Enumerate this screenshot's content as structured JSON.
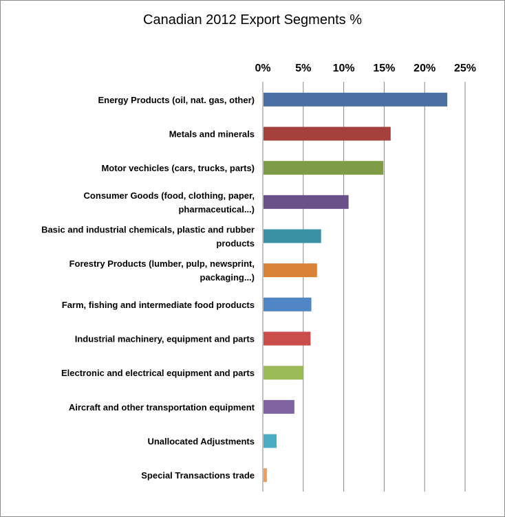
{
  "chart_data": {
    "type": "bar",
    "orientation": "horizontal",
    "title": "Canadian 2012 Export Segments %",
    "xlabel": "",
    "ylabel": "",
    "xlim": [
      0,
      25
    ],
    "x_axis_position": "top",
    "grid": true,
    "legend": "none",
    "ticks": [
      "0%",
      "5%",
      "10%",
      "15%",
      "20%",
      "25%"
    ],
    "tick_values": [
      0,
      5,
      10,
      15,
      20,
      25
    ],
    "categories": [
      {
        "label": "Energy Products (oil, nat. gas, other)",
        "lines": [
          "Energy Products (oil, nat. gas, other)"
        ],
        "value": 22.8,
        "color": "#4a6fa2"
      },
      {
        "label": "Metals and minerals",
        "lines": [
          "Metals and minerals"
        ],
        "value": 15.8,
        "color": "#a6403d"
      },
      {
        "label": "Motor vechicles (cars, trucks, parts)",
        "lines": [
          "Motor vechicles (cars, trucks, parts)"
        ],
        "value": 14.9,
        "color": "#7e9c46"
      },
      {
        "label": "Consumer Goods (food, clothing, paper, pharmaceutical...)",
        "lines": [
          "Consumer Goods (food, clothing, paper,",
          "pharmaceutical...)"
        ],
        "value": 10.6,
        "color": "#6a5189"
      },
      {
        "label": "Basic and industrial chemicals, plastic and rubber products",
        "lines": [
          "Basic and industrial chemicals, plastic and rubber",
          "products"
        ],
        "value": 7.2,
        "color": "#3a90a4"
      },
      {
        "label": "Forestry Products (lumber, pulp, newsprint, packaging...)",
        "lines": [
          "Forestry Products (lumber, pulp, newsprint,",
          "packaging...)"
        ],
        "value": 6.7,
        "color": "#d88238"
      },
      {
        "label": "Farm, fishing and intermediate food products",
        "lines": [
          "Farm, fishing and intermediate food products"
        ],
        "value": 6.0,
        "color": "#5086c6"
      },
      {
        "label": "Industrial machinery, equipment and parts",
        "lines": [
          "Industrial machinery, equipment and parts"
        ],
        "value": 5.9,
        "color": "#ca4d4b"
      },
      {
        "label": "Electronic and electrical equipment and parts",
        "lines": [
          "Electronic and electrical equipment and parts"
        ],
        "value": 5.0,
        "color": "#9bbb59"
      },
      {
        "label": "Aircraft and other transportation equipment",
        "lines": [
          "Aircraft and other transportation equipment"
        ],
        "value": 3.9,
        "color": "#8064a2"
      },
      {
        "label": "Unallocated Adjustments",
        "lines": [
          "Unallocated Adjustments"
        ],
        "value": 1.7,
        "color": "#4bacc6"
      },
      {
        "label": "Special Transactions trade",
        "lines": [
          "Special Transactions trade"
        ],
        "value": 0.5,
        "color": "#f39c56"
      }
    ]
  }
}
